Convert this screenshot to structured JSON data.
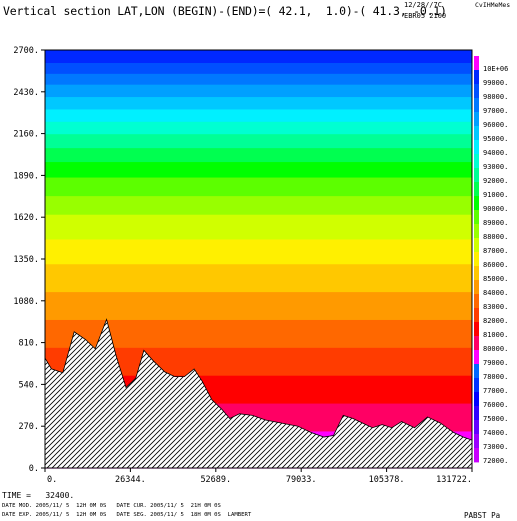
{
  "header": {
    "title": "Vertical section LAT,LON (BEGIN)-(END)=( 42.1,  1.0)-( 41.3, -0.1)",
    "date": "12/28//7C",
    "model": "EBR05 2100",
    "corner": "CvIHMeMes"
  },
  "footer": {
    "time": "TIME =   32400.",
    "line1": "DATE MOD. 2005/11/ 5  12H 0M 0S   DATE CUR. 2005/11/ 5  21H 0M 0S",
    "line2": "DATE EXP. 2005/11/ 5  12H 0M 0S   DATE SEG. 2005/11/ 5  18H 0M 0S  LAMBERT",
    "variable": "PABST Pa"
  },
  "chart_data": {
    "type": "heatmap",
    "x_ticks": [
      0,
      26344,
      52689,
      79033,
      105378,
      131722
    ],
    "x_tick_labels": [
      "0.",
      "26344.",
      "52689.",
      "79033.",
      "105378.",
      "131722."
    ],
    "y_ticks": [
      0,
      270,
      540,
      810,
      1080,
      1350,
      1620,
      1890,
      2160,
      2430,
      2700
    ],
    "y_tick_labels": [
      "0.",
      "270.",
      "540.",
      "810.",
      "1080.",
      "1350.",
      "1620.",
      "1890.",
      "2160.",
      "2430.",
      "2700."
    ],
    "xlim": [
      0,
      131722
    ],
    "ylim": [
      0,
      2700
    ],
    "levels": [
      72000,
      73000,
      74000,
      75000,
      76000,
      77000,
      78000,
      79000,
      80000,
      81000,
      82000,
      83000,
      84000,
      85000,
      86000,
      87000,
      88000,
      89000,
      90000,
      91000,
      92000,
      93000,
      94000,
      95000,
      96000,
      97000,
      98000,
      99000
    ],
    "level_labels": [
      "72000.",
      "73000.",
      "74000.",
      "75000.",
      "76000.",
      "77000.",
      "78000.",
      "79000.",
      "80000.",
      "81000.",
      "82000.",
      "83000.",
      "84000.",
      "85000.",
      "86000.",
      "87000.",
      "88000.",
      "89000.",
      "90000.",
      "91000.",
      "92000.",
      "93000.",
      "94000.",
      "95000.",
      "96000.",
      "97000.",
      "98000.",
      "99000."
    ],
    "level_colors": [
      "#c800ff",
      "#9b00ff",
      "#6400ff",
      "#3000ff",
      "#0000ff",
      "#0032ff",
      "#0068ff",
      "#ff00ff",
      "#ff0064",
      "#ff0000",
      "#ff3c00",
      "#ff6800",
      "#ff9a00",
      "#ffc800",
      "#fff000",
      "#d0ff00",
      "#98ff00",
      "#5cff00",
      "#00ff00",
      "#00ff50",
      "#00ff96",
      "#00ffd2",
      "#00f0ff",
      "#00c8ff",
      "#00a0ff",
      "#0078ff",
      "#0050ff",
      "#0028ff"
    ],
    "top_label": "10E+06",
    "top_color": "#ff00ff",
    "field_bands": [
      {
        "y0": 0,
        "y1": 240,
        "color": "#ff00ff"
      },
      {
        "y0": 240,
        "y1": 420,
        "color": "#ff0064"
      },
      {
        "y0": 420,
        "y1": 600,
        "color": "#ff0000"
      },
      {
        "y0": 600,
        "y1": 780,
        "color": "#ff3c00"
      },
      {
        "y0": 780,
        "y1": 960,
        "color": "#ff6800"
      },
      {
        "y0": 960,
        "y1": 1140,
        "color": "#ff9a00"
      },
      {
        "y0": 1140,
        "y1": 1320,
        "color": "#ffc800"
      },
      {
        "y0": 1320,
        "y1": 1480,
        "color": "#fff000"
      },
      {
        "y0": 1480,
        "y1": 1640,
        "color": "#d0ff00"
      },
      {
        "y0": 1640,
        "y1": 1760,
        "color": "#98ff00"
      },
      {
        "y0": 1760,
        "y1": 1880,
        "color": "#5cff00"
      },
      {
        "y0": 1880,
        "y1": 1980,
        "color": "#00ff00"
      },
      {
        "y0": 1980,
        "y1": 2070,
        "color": "#00ff50"
      },
      {
        "y0": 2070,
        "y1": 2160,
        "color": "#00ff96"
      },
      {
        "y0": 2160,
        "y1": 2240,
        "color": "#00ffd2"
      },
      {
        "y0": 2240,
        "y1": 2320,
        "color": "#00f0ff"
      },
      {
        "y0": 2320,
        "y1": 2400,
        "color": "#00c8ff"
      },
      {
        "y0": 2400,
        "y1": 2480,
        "color": "#00a0ff"
      },
      {
        "y0": 2480,
        "y1": 2550,
        "color": "#0078ff"
      },
      {
        "y0": 2550,
        "y1": 2620,
        "color": "#0050ff"
      },
      {
        "y0": 2620,
        "y1": 2700,
        "color": "#0028ff"
      }
    ],
    "terrain": [
      {
        "x": 0,
        "y": 710
      },
      {
        "x": 2000,
        "y": 640
      },
      {
        "x": 5500,
        "y": 615
      },
      {
        "x": 9000,
        "y": 880
      },
      {
        "x": 12500,
        "y": 830
      },
      {
        "x": 15500,
        "y": 770
      },
      {
        "x": 19000,
        "y": 960
      },
      {
        "x": 22000,
        "y": 720
      },
      {
        "x": 25000,
        "y": 520
      },
      {
        "x": 28000,
        "y": 580
      },
      {
        "x": 30500,
        "y": 760
      },
      {
        "x": 33500,
        "y": 690
      },
      {
        "x": 37000,
        "y": 620
      },
      {
        "x": 40000,
        "y": 590
      },
      {
        "x": 43000,
        "y": 590
      },
      {
        "x": 46000,
        "y": 640
      },
      {
        "x": 48500,
        "y": 560
      },
      {
        "x": 51500,
        "y": 440
      },
      {
        "x": 54500,
        "y": 380
      },
      {
        "x": 57000,
        "y": 320
      },
      {
        "x": 60000,
        "y": 350
      },
      {
        "x": 64000,
        "y": 340
      },
      {
        "x": 68000,
        "y": 310
      },
      {
        "x": 73000,
        "y": 290
      },
      {
        "x": 78000,
        "y": 270
      },
      {
        "x": 82000,
        "y": 230
      },
      {
        "x": 86000,
        "y": 200
      },
      {
        "x": 89000,
        "y": 210
      },
      {
        "x": 92000,
        "y": 340
      },
      {
        "x": 95000,
        "y": 320
      },
      {
        "x": 98000,
        "y": 290
      },
      {
        "x": 101000,
        "y": 260
      },
      {
        "x": 104000,
        "y": 280
      },
      {
        "x": 107000,
        "y": 260
      },
      {
        "x": 110000,
        "y": 300
      },
      {
        "x": 114000,
        "y": 260
      },
      {
        "x": 118000,
        "y": 330
      },
      {
        "x": 122000,
        "y": 290
      },
      {
        "x": 126000,
        "y": 230
      },
      {
        "x": 129000,
        "y": 200
      },
      {
        "x": 131722,
        "y": 180
      }
    ]
  }
}
